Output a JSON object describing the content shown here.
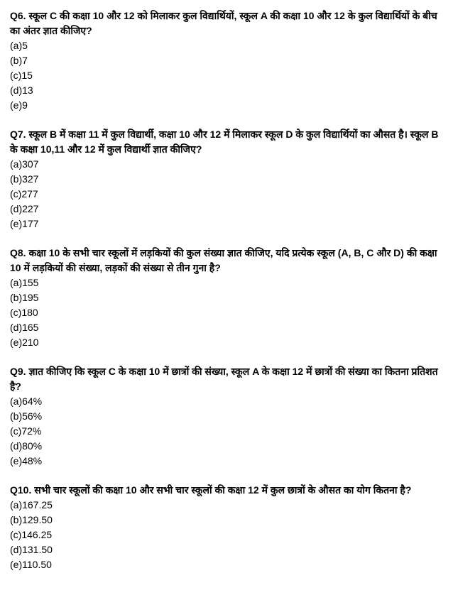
{
  "questions": [
    {
      "label": "Q6.",
      "text": "स्कूल C की कक्षा 10 और 12 को मिलाकर कुल विद्यार्थियों, स्कूल A की कक्षा 10 और 12 के कुल विद्यार्थियों के बीच का अंतर ज्ञात कीजिए?",
      "options": [
        "(a)5",
        "(b)7",
        "(c)15",
        "(d)13",
        "(e)9"
      ]
    },
    {
      "label": "Q7.",
      "text": "स्कूल B में कक्षा 11 में कुल विद्यार्थी, कक्षा 10 और 12 में मिलाकर स्कूल D के कुल विद्यार्थियों का औसत है। स्कूल B के कक्षा 10,11 और 12 में कुल विद्यार्थी ज्ञात कीजिए?",
      "options": [
        "(a)307",
        "(b)327",
        "(c)277",
        "(d)227",
        "(e)177"
      ]
    },
    {
      "label": "Q8.",
      "text": "कक्षा 10 के सभी चार स्कूलों में लड़कियों की कुल संख्या ज्ञात कीजिए, यदि प्रत्येक स्कूल (A, B, C और D) की कक्षा 10 में लड़कियों की संख्या, लड़कों की संख्या से तीन गुना है?",
      "options": [
        "(a)155",
        "(b)195",
        "(c)180",
        "(d)165",
        "(e)210"
      ]
    },
    {
      "label": "Q9.",
      "text": "ज्ञात कीजिए कि स्कूल C के कक्षा 10 में छात्रों की संख्या, स्कूल A के कक्षा 12 में छात्रों की संख्या का कितना प्रतिशत है?",
      "options": [
        "(a)64%",
        "(b)56%",
        "(c)72%",
        "(d)80%",
        "(e)48%"
      ]
    },
    {
      "label": "Q10.",
      "text": "सभी चार स्कूलों की कक्षा 10 और सभी चार स्कूलों की कक्षा 12 में कुल छात्रों के औसत का योग कितना है?",
      "options": [
        "(a)167.25",
        "(b)129.50",
        "(c)146.25",
        "(d)131.50",
        "(e)110.50"
      ]
    }
  ]
}
